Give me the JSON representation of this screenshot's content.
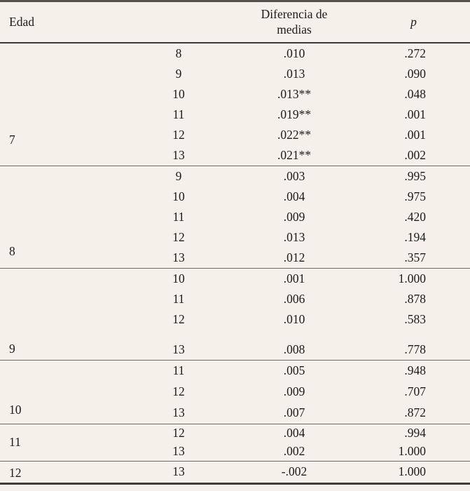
{
  "table": {
    "header": {
      "edad": "Edad",
      "diferencia": "Diferencia de medias",
      "p": "p"
    },
    "groups": [
      {
        "edad": "7",
        "rows": [
          {
            "vs": "8",
            "diff": ".010",
            "p": ".272"
          },
          {
            "vs": "9",
            "diff": ".013",
            "p": ".090"
          },
          {
            "vs": "10",
            "diff": ".013**",
            "p": ".048"
          },
          {
            "vs": "11",
            "diff": ".019**",
            "p": ".001"
          },
          {
            "vs": "12",
            "diff": ".022**",
            "p": ".001"
          },
          {
            "vs": "13",
            "diff": ".021**",
            "p": ".002"
          }
        ]
      },
      {
        "edad": "8",
        "rows": [
          {
            "vs": "9",
            "diff": ".003",
            "p": ".995"
          },
          {
            "vs": "10",
            "diff": ".004",
            "p": ".975"
          },
          {
            "vs": "11",
            "diff": ".009",
            "p": ".420"
          },
          {
            "vs": "12",
            "diff": ".013",
            "p": ".194"
          },
          {
            "vs": "13",
            "diff": ".012",
            "p": ".357"
          }
        ]
      },
      {
        "edad": "9",
        "rows": [
          {
            "vs": "10",
            "diff": ".001",
            "p": "1.000"
          },
          {
            "vs": "11",
            "diff": ".006",
            "p": ".878"
          },
          {
            "vs": "12",
            "diff": ".010",
            "p": ".583"
          },
          {
            "vs": "13",
            "diff": ".008",
            "p": ".778"
          }
        ]
      },
      {
        "edad": "10",
        "rows": [
          {
            "vs": "11",
            "diff": ".005",
            "p": ".948"
          },
          {
            "vs": "12",
            "diff": ".009",
            "p": ".707"
          },
          {
            "vs": "13",
            "diff": ".007",
            "p": ".872"
          }
        ]
      },
      {
        "edad": "11",
        "rows": [
          {
            "vs": "12",
            "diff": ".004",
            "p": ".994"
          },
          {
            "vs": "13",
            "diff": ".002",
            "p": "1.000"
          }
        ]
      },
      {
        "edad": "12",
        "rows": [
          {
            "vs": "13",
            "diff": "-.002",
            "p": "1.000"
          }
        ]
      }
    ]
  },
  "colors": {
    "background": "#f5f1ea",
    "text": "#1c1b18",
    "rule_heavy": "#403d38",
    "rule_light": "#6e6a62"
  }
}
